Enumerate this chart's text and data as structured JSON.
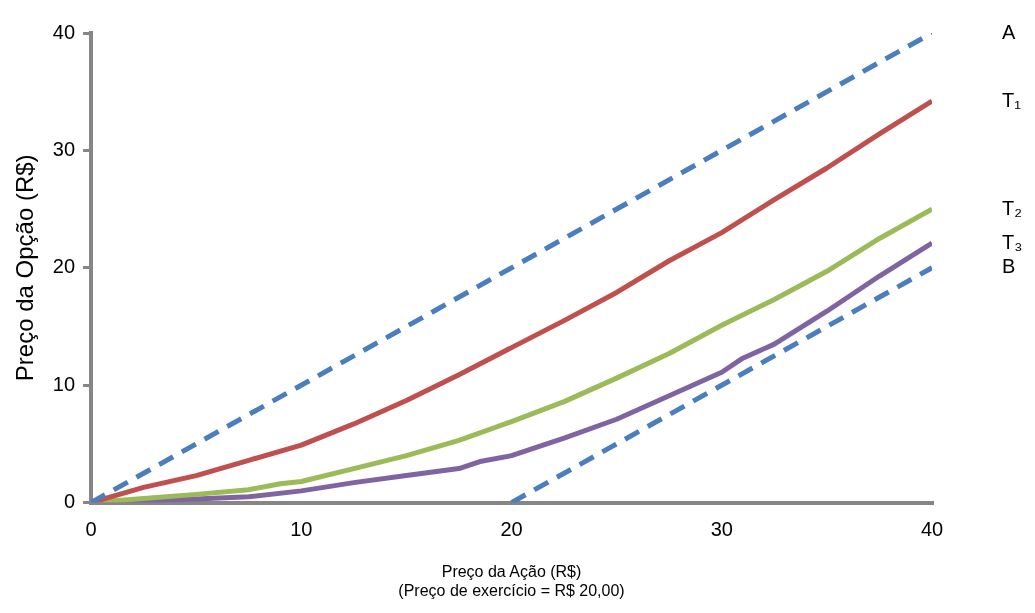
{
  "chart_data": {
    "type": "line",
    "xlabel": "Preço da Ação (R$)\n(Preço de exercício = R$ 20,00)",
    "ylabel": "Preço da Opção (R$)",
    "xlim": [
      0,
      40
    ],
    "xticks": [
      0,
      10,
      20,
      30,
      40
    ],
    "ylim": [
      0,
      40
    ],
    "yticks": [
      0,
      10,
      20,
      30,
      40
    ],
    "grid": false,
    "legend": false,
    "marker": "none",
    "series": [
      {
        "name": "A",
        "color": "#4a7ebf",
        "line_style": "dashed",
        "x": [
          0,
          40
        ],
        "values": [
          0,
          40
        ]
      },
      {
        "name": "T₁",
        "color": "#c0504d",
        "line_style": "solid",
        "x": [
          0,
          2.5,
          5,
          7.5,
          10,
          12.5,
          15,
          17.5,
          20,
          22.5,
          25,
          27.5,
          30,
          32.5,
          35,
          37.5,
          40
        ],
        "values": [
          0,
          1.3,
          2.3,
          3.6,
          4.9,
          6.7,
          8.7,
          10.9,
          13.2,
          15.5,
          17.9,
          20.6,
          23.0,
          25.8,
          28.5,
          31.4,
          34.2
        ]
      },
      {
        "name": "T₂",
        "color": "#9bbb59",
        "line_style": "solid",
        "x": [
          0,
          5,
          7.5,
          9,
          10,
          12.5,
          15,
          17.5,
          20,
          22.5,
          25,
          27.5,
          30,
          32.5,
          35,
          37.5,
          40
        ],
        "values": [
          0,
          0.7,
          1.1,
          1.6,
          1.8,
          2.9,
          4.0,
          5.3,
          6.9,
          8.6,
          10.6,
          12.7,
          15.1,
          17.3,
          19.7,
          22.5,
          25.0
        ]
      },
      {
        "name": "T₃",
        "color": "#8064a2",
        "line_style": "solid",
        "x": [
          0,
          5,
          7.5,
          10,
          12.5,
          15,
          17.5,
          18.5,
          20,
          22.5,
          25,
          27.5,
          30,
          31,
          32.5,
          35,
          37.5,
          40
        ],
        "values": [
          0,
          0.3,
          0.5,
          1.0,
          1.7,
          2.3,
          2.9,
          3.5,
          4.0,
          5.5,
          7.1,
          9.1,
          11.1,
          12.3,
          13.5,
          16.3,
          19.3,
          22.1
        ]
      },
      {
        "name": "B",
        "color": "#4a7ebf",
        "line_style": "dashed",
        "x": [
          20,
          40
        ],
        "values": [
          0,
          20
        ]
      }
    ]
  }
}
